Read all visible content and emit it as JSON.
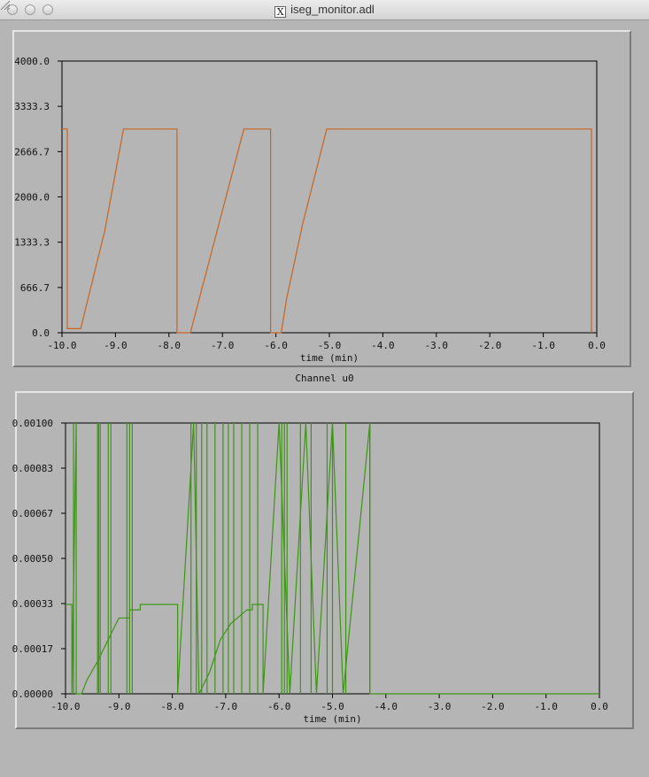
{
  "window": {
    "title": "iseg_monitor.adl"
  },
  "channel_label": "Channel u0",
  "colors": {
    "voltage": "#c8641e",
    "current": "#3c9614",
    "background": "#b5b5b5"
  },
  "icons": {
    "window_app": "x11-icon",
    "resize": "resize-grip-icon"
  },
  "chart_data": [
    {
      "type": "line",
      "name": "voltage-plot",
      "xlabel": "time (min)",
      "ylabel": "",
      "xlim": [
        -10.0,
        0.0
      ],
      "ylim": [
        0.0,
        4000.0
      ],
      "x_ticks": [
        "-10.0",
        "-9.0",
        "-8.0",
        "-7.0",
        "-6.0",
        "-5.0",
        "-4.0",
        "-3.0",
        "-2.0",
        "-1.0",
        "0.0"
      ],
      "y_ticks": [
        "0.0",
        "666.7",
        "1333.3",
        "2000.0",
        "2666.7",
        "3333.3",
        "4000.0"
      ],
      "series": [
        {
          "x": [
            -10.0,
            -9.9,
            -9.9,
            -9.65,
            -9.2,
            -8.85,
            -7.85,
            -7.85,
            -7.6,
            -6.6,
            -6.1,
            -6.1,
            -5.9,
            -5.8,
            -5.5,
            -5.05,
            -0.1,
            -0.1
          ],
          "y": [
            3000,
            3000,
            60,
            60,
            1500,
            3000,
            3000,
            0,
            0,
            3000,
            3000,
            0,
            0,
            500,
            1600,
            3000,
            3000,
            0
          ]
        }
      ]
    },
    {
      "type": "line",
      "name": "current-plot",
      "xlabel": "time (min)",
      "ylabel": "",
      "xlim": [
        -10.0,
        0.0
      ],
      "ylim": [
        0.0,
        0.001
      ],
      "x_ticks": [
        "-10.0",
        "-9.0",
        "-8.0",
        "-7.0",
        "-6.0",
        "-5.0",
        "-4.0",
        "-3.0",
        "-2.0",
        "-1.0",
        "0.0"
      ],
      "y_ticks": [
        "0.00000",
        "0.00017",
        "0.00033",
        "0.00050",
        "0.00067",
        "0.00083",
        "0.00100"
      ],
      "series": [
        {
          "x": [
            -10.0,
            -9.88,
            -9.88,
            -9.8,
            -9.8,
            -9.7,
            -9.6,
            -9.4,
            -9.2,
            -9.0,
            -8.8,
            -8.8,
            -8.6,
            -8.6,
            -8.2,
            -7.9,
            -7.9,
            -7.6,
            -7.5,
            -7.3,
            -7.1,
            -6.9,
            -6.6,
            -6.5,
            -6.5,
            -6.3,
            -6.3,
            -6.0,
            -5.8,
            -5.5,
            -5.3,
            -5.0,
            -4.8,
            -4.3,
            -4.3,
            0.0
          ],
          "y": [
            0.00033,
            0.00033,
            0.0,
            0.001,
            0.0,
            0.0,
            5e-05,
            0.00012,
            0.0002,
            0.00028,
            0.00028,
            0.00031,
            0.00031,
            0.00033,
            0.00033,
            0.00033,
            0.0,
            0.001,
            0.0,
            8e-05,
            0.0002,
            0.00026,
            0.00031,
            0.00031,
            0.00033,
            0.00033,
            0.0,
            0.001,
            0.0,
            0.001,
            0.0,
            0.001,
            0.0,
            0.001,
            0.0,
            0.0
          ]
        }
      ],
      "spikes_x": [
        -9.85,
        -9.4,
        -9.38,
        -9.35,
        -9.2,
        -9.15,
        -8.85,
        -8.8,
        -8.75,
        -7.65,
        -7.55,
        -7.45,
        -7.35,
        -7.2,
        -7.05,
        -6.95,
        -6.85,
        -6.7,
        -6.55,
        -6.4,
        -5.95,
        -5.9,
        -5.85,
        -5.6,
        -5.4,
        -5.1,
        -5.0,
        -4.75,
        -4.3
      ]
    }
  ]
}
